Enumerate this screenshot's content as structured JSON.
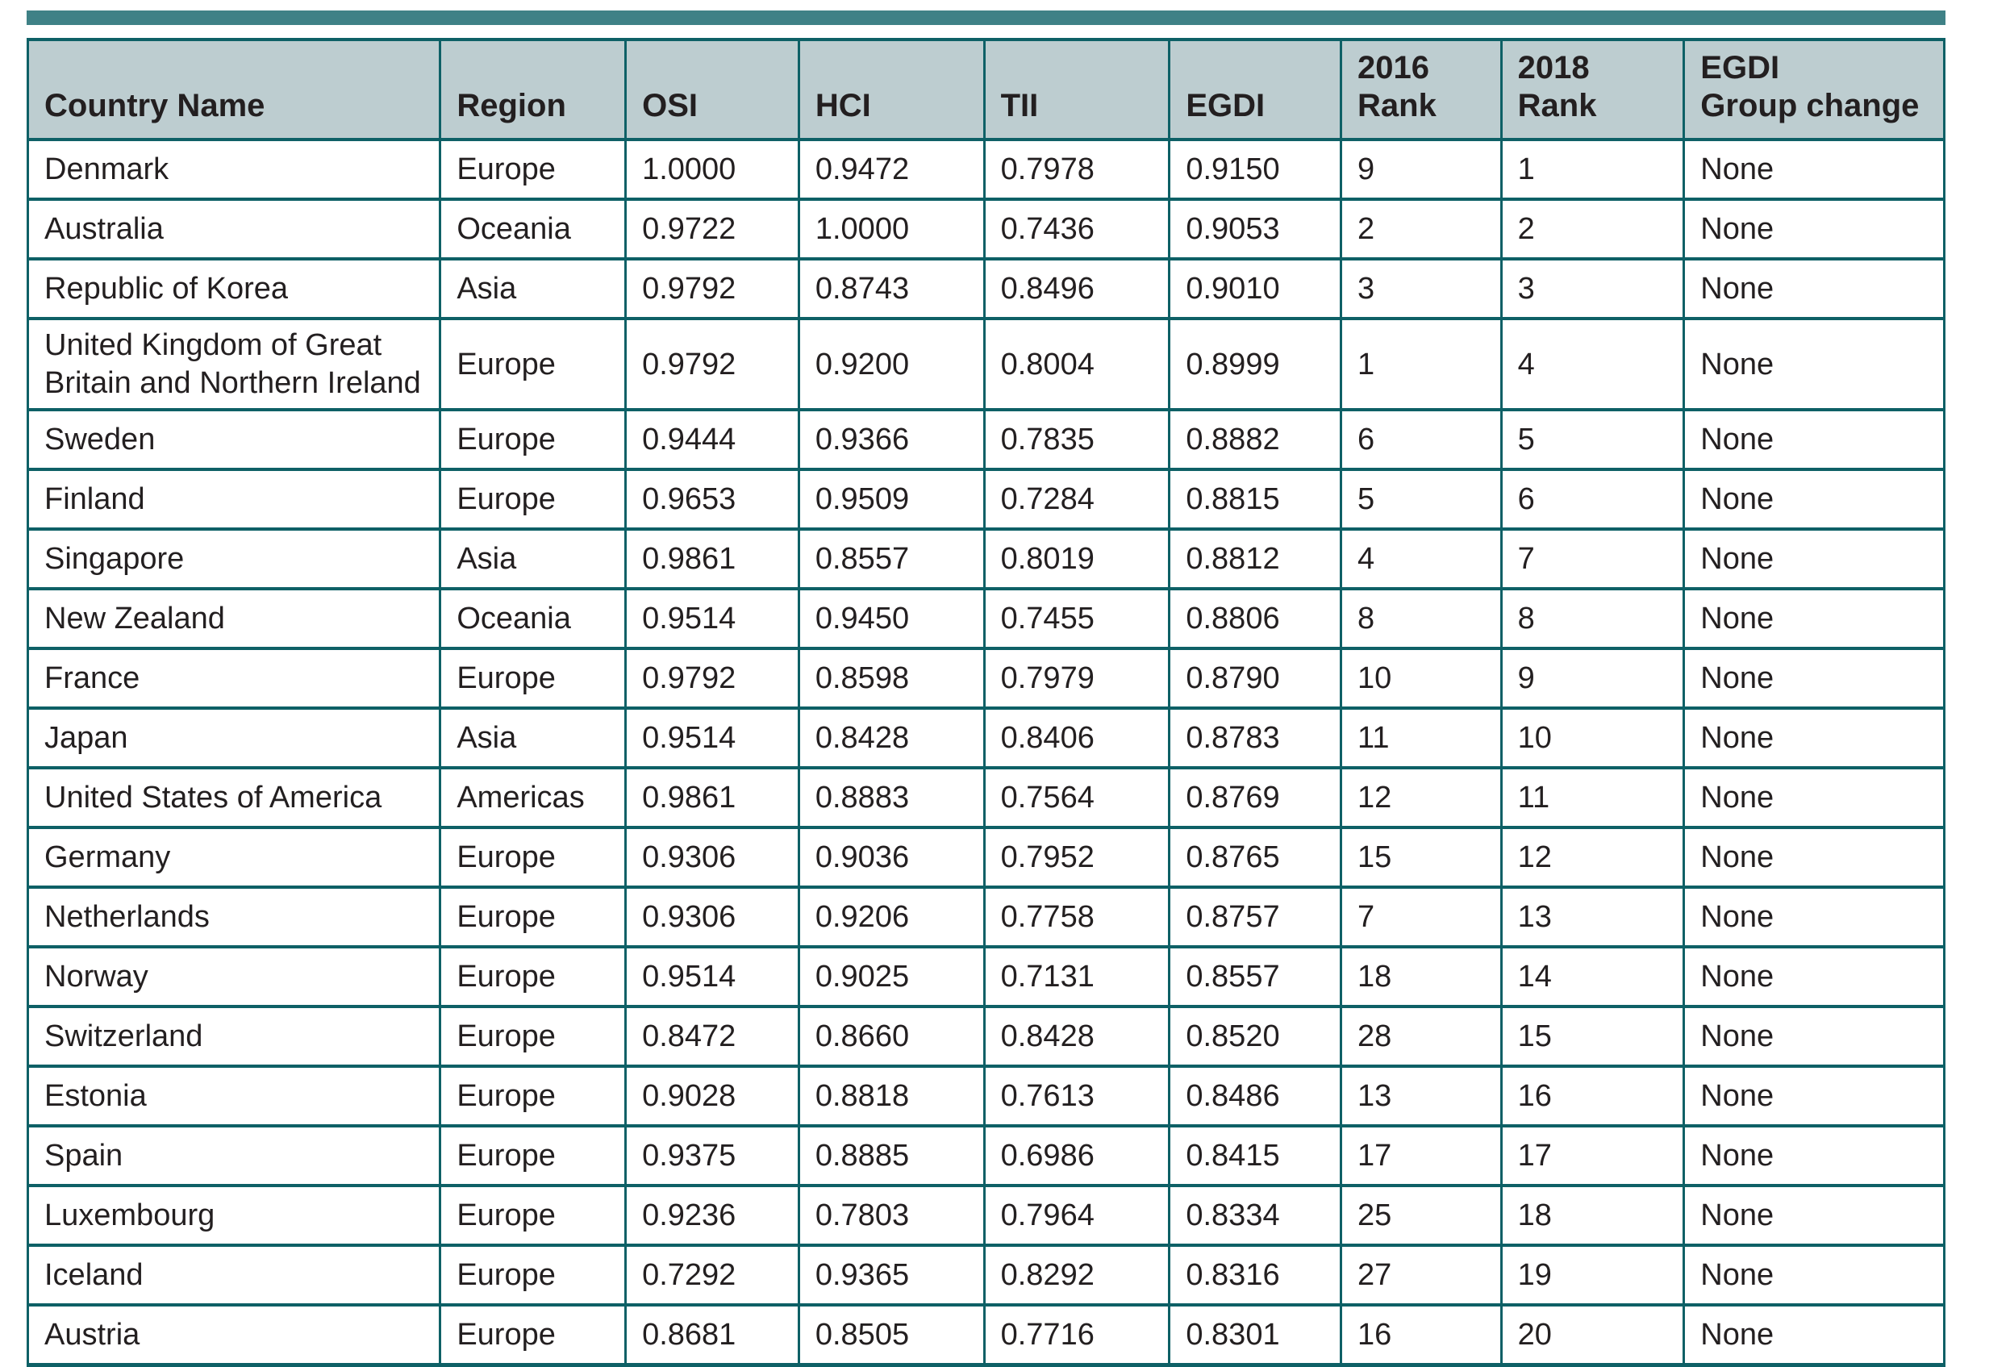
{
  "colors": {
    "accent": "#3F8186",
    "border": "#0E6066",
    "header-bg": "#BDCDD0",
    "text": "#231F20"
  },
  "table": {
    "columns": [
      {
        "key": "country",
        "label": "Country Name"
      },
      {
        "key": "region",
        "label": "Region"
      },
      {
        "key": "osi",
        "label": "OSI"
      },
      {
        "key": "hci",
        "label": "HCI"
      },
      {
        "key": "tii",
        "label": "TII"
      },
      {
        "key": "egdi",
        "label": "EGDI"
      },
      {
        "key": "rank2016",
        "label": "2016\nRank"
      },
      {
        "key": "rank2018",
        "label": "2018\nRank"
      },
      {
        "key": "change",
        "label": "EGDI\nGroup change"
      }
    ],
    "rows": [
      {
        "country": "Denmark",
        "region": "Europe",
        "osi": "1.0000",
        "hci": "0.9472",
        "tii": "0.7978",
        "egdi": "0.9150",
        "rank2016": "9",
        "rank2018": "1",
        "change": "None"
      },
      {
        "country": "Australia",
        "region": "Oceania",
        "osi": "0.9722",
        "hci": "1.0000",
        "tii": "0.7436",
        "egdi": "0.9053",
        "rank2016": "2",
        "rank2018": "2",
        "change": "None"
      },
      {
        "country": "Republic of Korea",
        "region": "Asia",
        "osi": "0.9792",
        "hci": "0.8743",
        "tii": "0.8496",
        "egdi": "0.9010",
        "rank2016": "3",
        "rank2018": "3",
        "change": "None"
      },
      {
        "country": "United Kingdom of Great Britain and Northern Ireland",
        "region": "Europe",
        "osi": "0.9792",
        "hci": "0.9200",
        "tii": "0.8004",
        "egdi": "0.8999",
        "rank2016": "1",
        "rank2018": "4",
        "change": "None"
      },
      {
        "country": "Sweden",
        "region": "Europe",
        "osi": "0.9444",
        "hci": "0.9366",
        "tii": "0.7835",
        "egdi": "0.8882",
        "rank2016": "6",
        "rank2018": "5",
        "change": "None"
      },
      {
        "country": "Finland",
        "region": "Europe",
        "osi": "0.9653",
        "hci": "0.9509",
        "tii": "0.7284",
        "egdi": "0.8815",
        "rank2016": "5",
        "rank2018": "6",
        "change": "None"
      },
      {
        "country": "Singapore",
        "region": "Asia",
        "osi": "0.9861",
        "hci": "0.8557",
        "tii": "0.8019",
        "egdi": "0.8812",
        "rank2016": "4",
        "rank2018": "7",
        "change": "None"
      },
      {
        "country": "New Zealand",
        "region": "Oceania",
        "osi": "0.9514",
        "hci": "0.9450",
        "tii": "0.7455",
        "egdi": "0.8806",
        "rank2016": "8",
        "rank2018": "8",
        "change": "None"
      },
      {
        "country": "France",
        "region": "Europe",
        "osi": "0.9792",
        "hci": "0.8598",
        "tii": "0.7979",
        "egdi": "0.8790",
        "rank2016": "10",
        "rank2018": "9",
        "change": "None"
      },
      {
        "country": "Japan",
        "region": "Asia",
        "osi": "0.9514",
        "hci": "0.8428",
        "tii": "0.8406",
        "egdi": "0.8783",
        "rank2016": "11",
        "rank2018": "10",
        "change": "None"
      },
      {
        "country": "United States of America",
        "region": "Americas",
        "osi": "0.9861",
        "hci": "0.8883",
        "tii": "0.7564",
        "egdi": "0.8769",
        "rank2016": "12",
        "rank2018": "11",
        "change": "None"
      },
      {
        "country": "Germany",
        "region": "Europe",
        "osi": "0.9306",
        "hci": "0.9036",
        "tii": "0.7952",
        "egdi": "0.8765",
        "rank2016": "15",
        "rank2018": "12",
        "change": "None"
      },
      {
        "country": "Netherlands",
        "region": "Europe",
        "osi": "0.9306",
        "hci": "0.9206",
        "tii": "0.7758",
        "egdi": "0.8757",
        "rank2016": "7",
        "rank2018": "13",
        "change": "None"
      },
      {
        "country": "Norway",
        "region": "Europe",
        "osi": "0.9514",
        "hci": "0.9025",
        "tii": "0.7131",
        "egdi": "0.8557",
        "rank2016": "18",
        "rank2018": "14",
        "change": "None"
      },
      {
        "country": "Switzerland",
        "region": "Europe",
        "osi": "0.8472",
        "hci": "0.8660",
        "tii": "0.8428",
        "egdi": "0.8520",
        "rank2016": "28",
        "rank2018": "15",
        "change": "None"
      },
      {
        "country": "Estonia",
        "region": "Europe",
        "osi": "0.9028",
        "hci": "0.8818",
        "tii": "0.7613",
        "egdi": "0.8486",
        "rank2016": "13",
        "rank2018": "16",
        "change": "None"
      },
      {
        "country": "Spain",
        "region": "Europe",
        "osi": "0.9375",
        "hci": "0.8885",
        "tii": "0.6986",
        "egdi": "0.8415",
        "rank2016": "17",
        "rank2018": "17",
        "change": "None"
      },
      {
        "country": "Luxembourg",
        "region": "Europe",
        "osi": "0.9236",
        "hci": "0.7803",
        "tii": "0.7964",
        "egdi": "0.8334",
        "rank2016": "25",
        "rank2018": "18",
        "change": "None"
      },
      {
        "country": "Iceland",
        "region": "Europe",
        "osi": "0.7292",
        "hci": "0.9365",
        "tii": "0.8292",
        "egdi": "0.8316",
        "rank2016": "27",
        "rank2018": "19",
        "change": "None"
      },
      {
        "country": "Austria",
        "region": "Europe",
        "osi": "0.8681",
        "hci": "0.8505",
        "tii": "0.7716",
        "egdi": "0.8301",
        "rank2016": "16",
        "rank2018": "20",
        "change": "None"
      }
    ]
  }
}
